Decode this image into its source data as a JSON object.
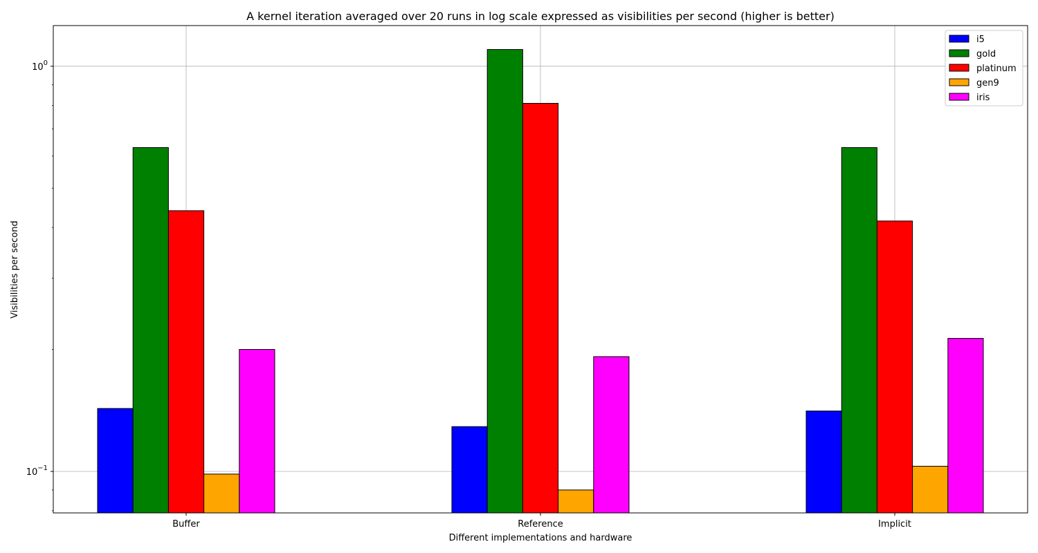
{
  "chart_data": {
    "type": "bar",
    "title": "A kernel iteration averaged over 20 runs in log scale expressed as visibilities per second (higher is better)",
    "xlabel": "Different implementations and hardware",
    "ylabel": "Visibilities per second",
    "yscale": "log",
    "ylim": [
      0.079,
      1.26
    ],
    "yticks": [
      {
        "value": 0.1,
        "base": "10",
        "exp": "−1"
      },
      {
        "value": 1,
        "base": "10",
        "exp": "0"
      }
    ],
    "categories": [
      "Buffer",
      "Reference",
      "Implicit"
    ],
    "series": [
      {
        "name": "i5",
        "color": "#0000ff",
        "values": [
          0.143,
          0.129,
          0.141
        ]
      },
      {
        "name": "gold",
        "color": "#008000",
        "values": [
          0.63,
          1.1,
          0.63
        ]
      },
      {
        "name": "platinum",
        "color": "#ff0000",
        "values": [
          0.44,
          0.81,
          0.415
        ]
      },
      {
        "name": "gen9",
        "color": "#ffa500",
        "values": [
          0.0985,
          0.09,
          0.103
        ]
      },
      {
        "name": "iris",
        "color": "#ff00ff",
        "values": [
          0.2,
          0.192,
          0.213
        ]
      }
    ],
    "grid": true,
    "legend_position": "upper right"
  }
}
